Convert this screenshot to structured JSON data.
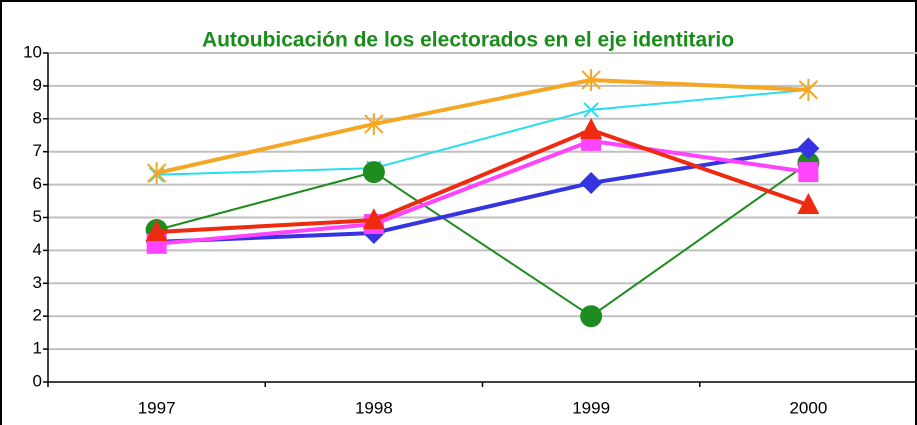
{
  "chart_data": {
    "type": "line",
    "title": "Autoubicación de los electorados en el eje identitario",
    "title_color": "#1a8c1a",
    "categories": [
      "1997",
      "1998",
      "1999",
      "2000"
    ],
    "series": [
      {
        "color": "#28ddee",
        "marker": "x",
        "width": 2,
        "values": [
          6.3,
          6.5,
          8.27,
          8.88
        ]
      },
      {
        "color": "#1e8c1e",
        "marker": "circle",
        "width": 2,
        "values": [
          4.62,
          6.38,
          2.0,
          6.66
        ]
      },
      {
        "color": "#3434e0",
        "marker": "diamond",
        "width": 4,
        "values": [
          4.26,
          4.53,
          6.05,
          7.1
        ]
      },
      {
        "color": "#ff44ff",
        "marker": "square",
        "width": 4,
        "values": [
          4.2,
          4.8,
          7.33,
          6.38
        ]
      },
      {
        "color": "#ee2a10",
        "marker": "triangle",
        "width": 4,
        "values": [
          4.56,
          4.92,
          7.66,
          5.38
        ]
      },
      {
        "color": "#f5a623",
        "marker": "asterisk",
        "width": 4,
        "values": [
          6.35,
          7.84,
          9.18,
          8.88
        ]
      }
    ],
    "ylim": [
      0,
      10
    ],
    "yticks": [
      0,
      1,
      2,
      3,
      4,
      5,
      6,
      7,
      8,
      9,
      10
    ],
    "grid": true
  }
}
